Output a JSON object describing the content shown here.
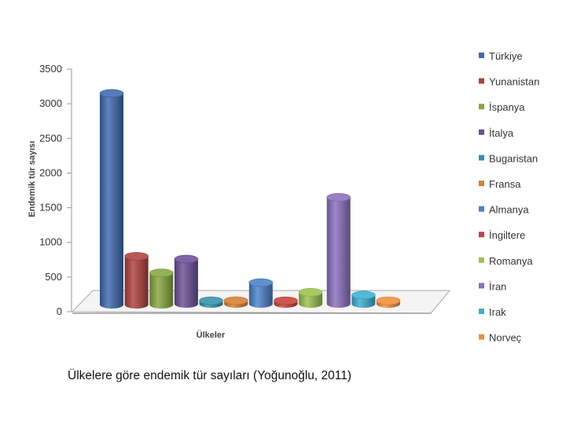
{
  "caption": "Ülkelere göre endemik tür sayıları (Yoğunoğlu, 2011)",
  "chart_data": {
    "type": "bar",
    "style": "3d-cylinder",
    "title": "",
    "xlabel": "Ülkeler",
    "ylabel": "Endemik tür sayısı",
    "ylim": [
      0,
      3500
    ],
    "yticks": [
      0,
      500,
      1000,
      1500,
      2000,
      2500,
      3000,
      3500
    ],
    "grid": false,
    "legend": "right",
    "categories": [
      "Türkiye",
      "Yunanistan",
      "İspanya",
      "İtalya",
      "Bugaristan",
      "Fransa",
      "Almanya",
      "İngiltere",
      "Romanya",
      "İran",
      "Irak",
      "Norveç"
    ],
    "values": [
      3150,
      800,
      560,
      760,
      60,
      160,
      420,
      80,
      280,
      1650,
      240,
      20
    ],
    "colors": [
      "#3E68B0",
      "#B0403D",
      "#84A83E",
      "#6C4F98",
      "#3592AB",
      "#DA7F2F",
      "#4A80C8",
      "#C8403C",
      "#9BC24A",
      "#8A6EBE",
      "#3AAFD0",
      "#F08E3A"
    ]
  }
}
